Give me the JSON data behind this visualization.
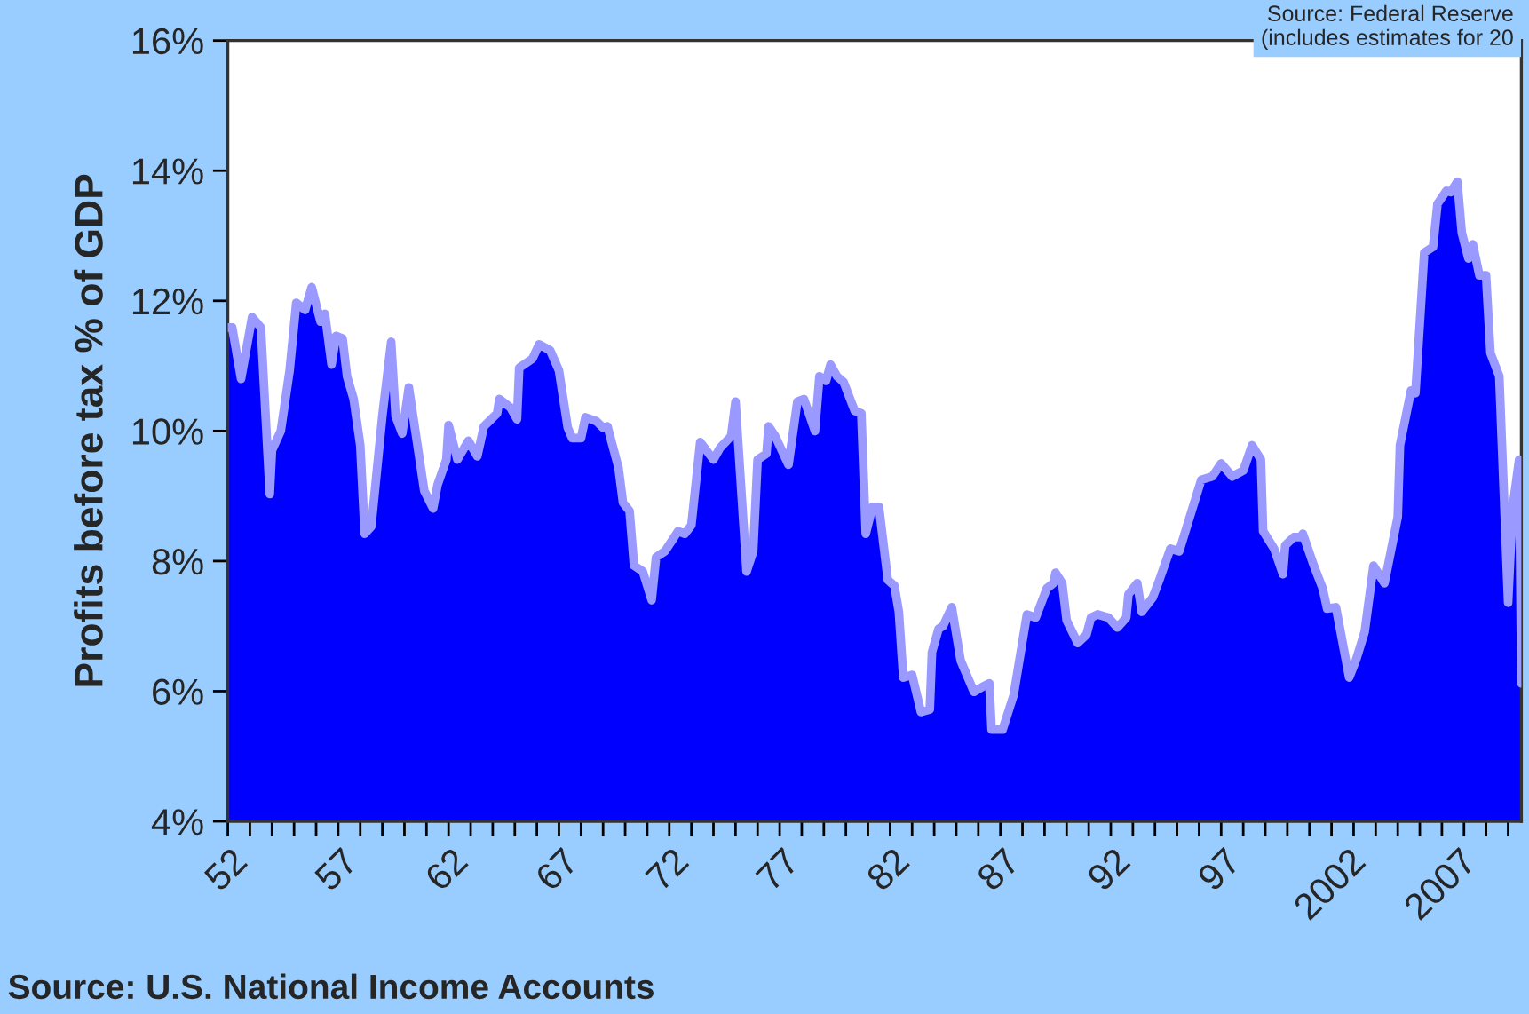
{
  "chart_data": {
    "type": "area",
    "ylabel": "Profits before tax % of GDP",
    "annotations": [
      "Source: Federal Reserve\n(includes estimates for 20",
      "Source: U.S. National Income Accounts"
    ],
    "xlim": [
      1952,
      2010.6
    ],
    "xticks": [
      {
        "value": 1952,
        "label": "52"
      },
      {
        "value": 1953,
        "label": null
      },
      {
        "value": 1954,
        "label": null
      },
      {
        "value": 1955,
        "label": null
      },
      {
        "value": 1956,
        "label": null
      },
      {
        "value": 1957,
        "label": "57"
      },
      {
        "value": 1958,
        "label": null
      },
      {
        "value": 1959,
        "label": null
      },
      {
        "value": 1960,
        "label": null
      },
      {
        "value": 1961,
        "label": null
      },
      {
        "value": 1962,
        "label": "62"
      },
      {
        "value": 1963,
        "label": null
      },
      {
        "value": 1964,
        "label": null
      },
      {
        "value": 1965,
        "label": null
      },
      {
        "value": 1966,
        "label": null
      },
      {
        "value": 1967,
        "label": "67"
      },
      {
        "value": 1968,
        "label": null
      },
      {
        "value": 1969,
        "label": null
      },
      {
        "value": 1970,
        "label": null
      },
      {
        "value": 1971,
        "label": null
      },
      {
        "value": 1972,
        "label": "72"
      },
      {
        "value": 1973,
        "label": null
      },
      {
        "value": 1974,
        "label": null
      },
      {
        "value": 1975,
        "label": null
      },
      {
        "value": 1976,
        "label": null
      },
      {
        "value": 1977,
        "label": "77"
      },
      {
        "value": 1978,
        "label": null
      },
      {
        "value": 1979,
        "label": null
      },
      {
        "value": 1980,
        "label": null
      },
      {
        "value": 1981,
        "label": null
      },
      {
        "value": 1982,
        "label": "82"
      },
      {
        "value": 1983,
        "label": null
      },
      {
        "value": 1984,
        "label": null
      },
      {
        "value": 1985,
        "label": null
      },
      {
        "value": 1986,
        "label": null
      },
      {
        "value": 1987,
        "label": "87"
      },
      {
        "value": 1988,
        "label": null
      },
      {
        "value": 1989,
        "label": null
      },
      {
        "value": 1990,
        "label": null
      },
      {
        "value": 1991,
        "label": null
      },
      {
        "value": 1992,
        "label": "92"
      },
      {
        "value": 1993,
        "label": null
      },
      {
        "value": 1994,
        "label": null
      },
      {
        "value": 1995,
        "label": null
      },
      {
        "value": 1996,
        "label": null
      },
      {
        "value": 1997,
        "label": "97"
      },
      {
        "value": 1998,
        "label": null
      },
      {
        "value": 1999,
        "label": null
      },
      {
        "value": 2000,
        "label": null
      },
      {
        "value": 2001,
        "label": null
      },
      {
        "value": 2002,
        "label": "2002"
      },
      {
        "value": 2003,
        "label": null
      },
      {
        "value": 2004,
        "label": null
      },
      {
        "value": 2005,
        "label": null
      },
      {
        "value": 2006,
        "label": null
      },
      {
        "value": 2007,
        "label": "2007"
      },
      {
        "value": 2008,
        "label": null
      },
      {
        "value": 2009,
        "label": null
      },
      {
        "value": 2010,
        "label": null
      }
    ],
    "ylim": [
      4,
      16
    ],
    "yticks": [
      {
        "value": 4,
        "label": "4%"
      },
      {
        "value": 6,
        "label": "6%"
      },
      {
        "value": 8,
        "label": "8%"
      },
      {
        "value": 10,
        "label": "10%"
      },
      {
        "value": 12,
        "label": "12%"
      },
      {
        "value": 14,
        "label": "14%"
      },
      {
        "value": 16,
        "label": "16%"
      }
    ],
    "grid": false,
    "series": [
      {
        "color": "#0000ff",
        "x": [
          1952.0,
          1952.2,
          1952.6,
          1953.1,
          1953.5,
          1953.9,
          1954.0,
          1954.4,
          1954.8,
          1955.1,
          1955.5,
          1955.8,
          1956.2,
          1956.4,
          1956.7,
          1956.9,
          1957.2,
          1957.4,
          1957.7,
          1958.0,
          1958.2,
          1958.5,
          1959.0,
          1959.4,
          1959.6,
          1959.9,
          1960.2,
          1960.9,
          1961.3,
          1961.5,
          1961.9,
          1962.0,
          1962.4,
          1962.9,
          1963.3,
          1963.6,
          1964.2,
          1964.3,
          1964.8,
          1965.1,
          1965.2,
          1965.8,
          1966.1,
          1966.6,
          1967.0,
          1967.4,
          1967.6,
          1968.0,
          1968.2,
          1968.7,
          1969.0,
          1969.2,
          1969.7,
          1969.9,
          1970.2,
          1970.4,
          1970.8,
          1971.2,
          1971.4,
          1971.8,
          1972.4,
          1972.7,
          1973.0,
          1973.4,
          1974.0,
          1974.3,
          1974.8,
          1975.0,
          1975.5,
          1975.8,
          1976.0,
          1976.4,
          1976.5,
          1976.8,
          1977.4,
          1977.8,
          1978.1,
          1978.6,
          1978.8,
          1979.1,
          1979.3,
          1979.6,
          1979.9,
          1980.4,
          1980.7,
          1980.9,
          1981.2,
          1981.5,
          1981.9,
          1982.2,
          1982.4,
          1982.6,
          1983.0,
          1983.4,
          1983.8,
          1983.9,
          1984.2,
          1984.4,
          1984.8,
          1985.2,
          1985.8,
          1986.2,
          1986.5,
          1986.6,
          1987.1,
          1987.6,
          1988.2,
          1988.6,
          1989.1,
          1989.4,
          1989.5,
          1989.8,
          1990.0,
          1990.5,
          1990.9,
          1991.1,
          1991.4,
          1991.9,
          1992.3,
          1992.7,
          1992.8,
          1993.2,
          1993.4,
          1993.9,
          1994.2,
          1994.7,
          1995.1,
          1995.5,
          1996.1,
          1996.6,
          1997.0,
          1997.5,
          1998.0,
          1998.4,
          1998.8,
          1998.9,
          1999.4,
          1999.8,
          1999.9,
          2000.3,
          2000.6,
          2000.7,
          2001.2,
          2001.6,
          2001.8,
          2002.2,
          2002.8,
          2003.1,
          2003.5,
          2003.9,
          2004.4,
          2005.0,
          2005.1,
          2005.6,
          2005.8,
          2006.2,
          2006.6,
          2006.8,
          2007.2,
          2007.4,
          2007.7,
          2007.9,
          2008.2,
          2008.4,
          2008.7,
          2009.0,
          2009.2,
          2009.6,
          2010.0,
          2010.2,
          2010.5,
          2010.6
        ],
        "values": [
          11.59,
          11.59,
          10.8,
          11.75,
          11.59,
          9.03,
          9.7,
          10.0,
          10.93,
          11.97,
          11.86,
          12.21,
          11.68,
          11.8,
          11.02,
          11.46,
          11.42,
          10.84,
          10.49,
          9.78,
          8.42,
          8.53,
          10.23,
          11.37,
          10.23,
          9.96,
          10.67,
          9.08,
          8.81,
          9.17,
          9.56,
          10.09,
          9.56,
          9.85,
          9.61,
          10.07,
          10.27,
          10.49,
          10.36,
          10.18,
          10.97,
          11.11,
          11.33,
          11.24,
          10.93,
          10.05,
          9.89,
          9.89,
          10.21,
          10.15,
          10.05,
          10.07,
          9.43,
          8.9,
          8.77,
          7.93,
          7.84,
          7.4,
          8.06,
          8.15,
          8.46,
          8.42,
          8.55,
          9.83,
          9.56,
          9.74,
          9.92,
          10.45,
          7.84,
          8.15,
          9.56,
          9.65,
          10.07,
          9.92,
          9.48,
          10.45,
          10.49,
          10.0,
          10.84,
          10.77,
          11.02,
          10.84,
          10.75,
          10.31,
          10.27,
          8.42,
          8.83,
          8.83,
          7.71,
          7.62,
          7.22,
          6.21,
          6.25,
          5.68,
          5.72,
          6.6,
          6.96,
          7.0,
          7.29,
          6.47,
          5.99,
          6.07,
          6.12,
          5.41,
          5.41,
          5.94,
          7.18,
          7.13,
          7.58,
          7.66,
          7.82,
          7.66,
          7.09,
          6.74,
          6.87,
          7.13,
          7.18,
          7.13,
          6.98,
          7.13,
          7.49,
          7.66,
          7.22,
          7.44,
          7.71,
          8.19,
          8.15,
          8.59,
          9.25,
          9.3,
          9.5,
          9.3,
          9.39,
          9.78,
          9.56,
          8.46,
          8.19,
          7.8,
          8.24,
          8.37,
          8.37,
          8.42,
          7.93,
          7.58,
          7.27,
          7.29,
          6.21,
          6.47,
          6.91,
          7.93,
          7.66,
          8.68,
          9.78,
          10.62,
          10.58,
          12.74,
          12.83,
          13.49,
          13.69,
          13.67,
          13.83,
          13.05,
          12.65,
          12.87,
          12.39,
          12.39,
          11.2,
          10.84,
          7.36,
          8.81,
          9.56,
          6.12
        ]
      }
    ]
  }
}
